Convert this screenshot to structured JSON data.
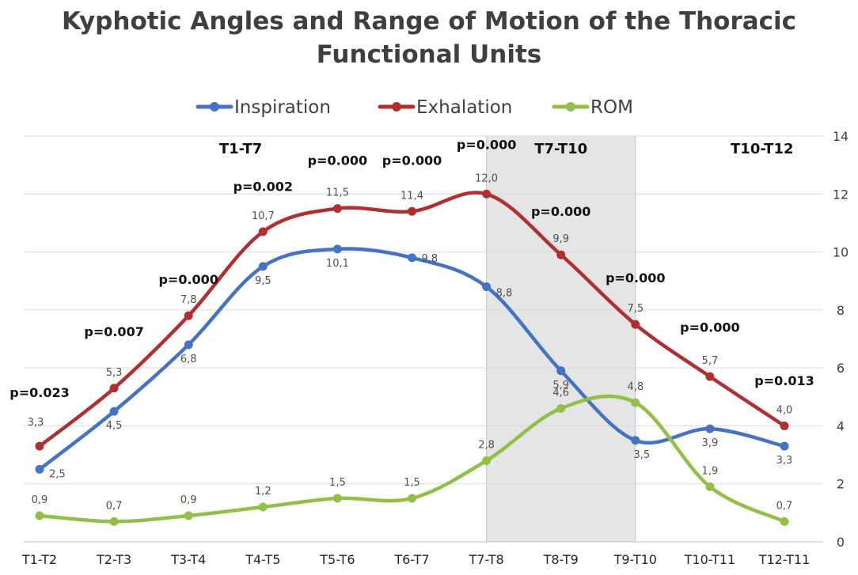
{
  "chart_data": {
    "type": "line",
    "title_lines": [
      "Kyphotic Angles and Range of Motion of the Thoracic",
      "Functional Units"
    ],
    "categories": [
      "T1-T2",
      "T2-T3",
      "T3-T4",
      "T4-T5",
      "T5-T6",
      "T6-T7",
      "T7-T8",
      "T8-T9",
      "T9-T10",
      "T10-T11",
      "T12-T11"
    ],
    "y_axis": {
      "position": "right",
      "min": 0,
      "max": 14,
      "ticks": [
        "0",
        "2",
        "4",
        "6",
        "8",
        "10",
        "12",
        "14"
      ]
    },
    "grid": true,
    "legend_position": "top",
    "series": [
      {
        "name": "Inspiration",
        "color": "#4472c4",
        "values": [
          2.5,
          4.5,
          6.8,
          9.5,
          10.1,
          9.8,
          8.8,
          5.9,
          3.5,
          3.9,
          3.3
        ],
        "labels": [
          "2,5",
          "4,5",
          "6,8",
          "9,5",
          "10,1",
          "9,8",
          "8,8",
          "5,9",
          "3,5",
          "3,9",
          "3,3"
        ]
      },
      {
        "name": "Exhalation",
        "color": "#b22f2f",
        "values": [
          3.3,
          5.3,
          7.8,
          10.7,
          11.5,
          11.4,
          12.0,
          9.9,
          7.5,
          5.7,
          4.0
        ],
        "labels": [
          "3,3",
          "5,3",
          "7,8",
          "10,7",
          "11,5",
          "11,4",
          "12,0",
          "9,9",
          "7,5",
          "5,7",
          "4,0"
        ]
      },
      {
        "name": "ROM",
        "color": "#92c047",
        "values": [
          0.9,
          0.7,
          0.9,
          1.2,
          1.5,
          1.5,
          2.8,
          4.6,
          4.8,
          1.9,
          0.7
        ],
        "labels": [
          "0,9",
          "0,7",
          "0,9",
          "1,2",
          "1,5",
          "1,5",
          "2,8",
          "4,6",
          "4,8",
          "1,9",
          "0,7"
        ]
      }
    ],
    "p_values": [
      {
        "text": "p=0.023",
        "category_index": 0,
        "y": 5.0
      },
      {
        "text": "p=0.007",
        "category_index": 1,
        "y": 7.1
      },
      {
        "text": "p=0.000",
        "category_index": 2,
        "y": 8.9
      },
      {
        "text": "p=0.002",
        "category_index": 3,
        "y": 12.1
      },
      {
        "text": "p=0.000",
        "category_index": 4,
        "y": 13.0
      },
      {
        "text": "p=0.000",
        "category_index": 5,
        "y": 13.0
      },
      {
        "text": "p=0.000",
        "category_index": 6,
        "y": 13.55
      },
      {
        "text": "p=0.000",
        "category_index": 7,
        "y": 11.25
      },
      {
        "text": "p=0.000",
        "category_index": 8,
        "y": 8.95
      },
      {
        "text": "p=0.000",
        "category_index": 9,
        "y": 7.25
      },
      {
        "text": "p=0.013",
        "category_index": 10,
        "y": 5.4
      }
    ],
    "regions": [
      {
        "label": "T1-T7",
        "category_index": 2.7,
        "y": 13.4,
        "shaded": false
      },
      {
        "label": "T7-T10",
        "category_index": 7.0,
        "y": 13.4,
        "shaded": true,
        "from_index": 6.0,
        "to_index": 8.0
      },
      {
        "label": "T10-T12",
        "category_index": 9.7,
        "y": 13.4,
        "shaded": false
      }
    ]
  }
}
